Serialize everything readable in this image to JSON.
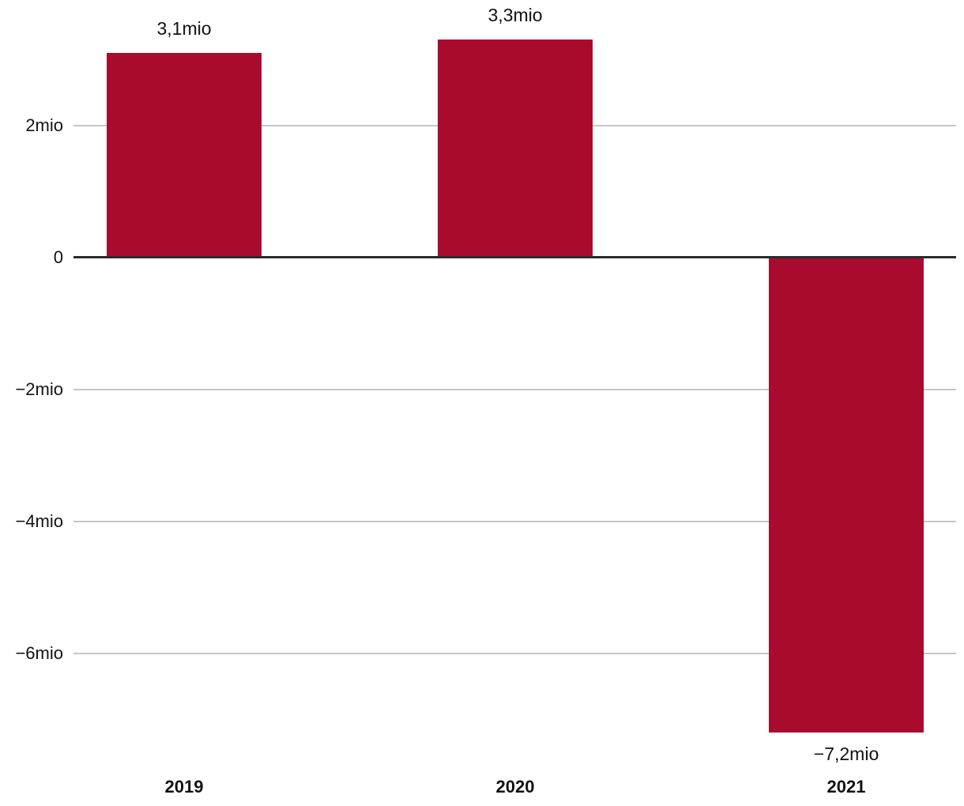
{
  "chart_data": {
    "type": "bar",
    "categories": [
      "2019",
      "2020",
      "2021"
    ],
    "values": [
      3.1,
      3.3,
      -7.2
    ],
    "value_labels": [
      "3,1mio",
      "3,3mio",
      "−7,2mio"
    ],
    "y_ticks": [
      {
        "value": 2,
        "label": "2mio"
      },
      {
        "value": 0,
        "label": "0"
      },
      {
        "value": -2,
        "label": "−2mio"
      },
      {
        "value": -4,
        "label": "−4mio"
      },
      {
        "value": -6,
        "label": "−6mio"
      }
    ],
    "title": "",
    "xlabel": "",
    "ylabel": "",
    "ylim": [
      -7.6,
      3.9
    ],
    "grid": true,
    "legend_position": "none",
    "bar_color": "#a80b2e",
    "gridline_color": "#c6c6c6",
    "zero_line_color": "#2b2b2b",
    "text_color": "#121212"
  }
}
